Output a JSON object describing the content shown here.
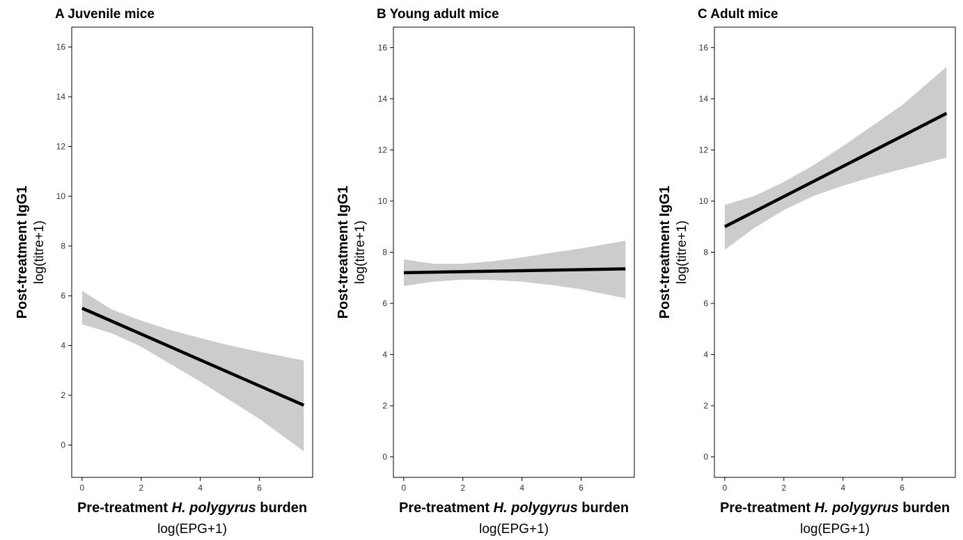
{
  "chart_data": [
    {
      "type": "line",
      "title": "A Juvenile mice",
      "ylabel_main": "Post-treatment IgG1",
      "ylabel_sub": "log(titre+1)",
      "xlabel_prefix": "Pre-treatment ",
      "xlabel_italic": "H. polygyrus",
      "xlabel_suffix": " burden",
      "xlabel_sub": "log(EPG+1)",
      "xlim": [
        -0.35,
        7.8
      ],
      "ylim": [
        -1.3,
        16.8
      ],
      "xticks": [
        0,
        2,
        4,
        6
      ],
      "yticks": [
        0,
        2,
        4,
        6,
        8,
        10,
        12,
        14,
        16
      ],
      "grid": false,
      "fit": {
        "x": [
          0,
          2,
          4,
          6,
          7.5
        ],
        "y": [
          5.5,
          4.46,
          3.42,
          2.38,
          1.6
        ]
      },
      "ci_upper": {
        "x": [
          0,
          1,
          2,
          3,
          4,
          5,
          6,
          7.5
        ],
        "y": [
          6.2,
          5.45,
          5.0,
          4.62,
          4.3,
          4.0,
          3.75,
          3.4
        ]
      },
      "ci_lower": {
        "x": [
          0,
          1,
          2,
          3,
          4,
          5,
          6,
          7.5
        ],
        "y": [
          4.85,
          4.5,
          3.95,
          3.25,
          2.55,
          1.8,
          1.05,
          -0.25
        ]
      }
    },
    {
      "type": "line",
      "title": "B Young adult mice",
      "ylabel_main": "Post-treatment IgG1",
      "ylabel_sub": "log(titre+1)",
      "xlabel_prefix": "Pre-treatment ",
      "xlabel_italic": "H. polygyrus",
      "xlabel_suffix": " burden",
      "xlabel_sub": "log(EPG+1)",
      "xlim": [
        -0.35,
        7.8
      ],
      "ylim": [
        -0.8,
        16.8
      ],
      "xticks": [
        0,
        2,
        4,
        6
      ],
      "yticks": [
        0,
        2,
        4,
        6,
        8,
        10,
        12,
        14,
        16
      ],
      "grid": false,
      "fit": {
        "x": [
          0,
          2,
          4,
          6,
          7.5
        ],
        "y": [
          7.2,
          7.24,
          7.28,
          7.32,
          7.35
        ]
      },
      "ci_upper": {
        "x": [
          0,
          1,
          2,
          3,
          4,
          5,
          6,
          7.5
        ],
        "y": [
          7.72,
          7.55,
          7.55,
          7.65,
          7.8,
          7.98,
          8.15,
          8.45
        ]
      },
      "ci_lower": {
        "x": [
          0,
          1,
          2,
          3,
          4,
          5,
          6,
          7.5
        ],
        "y": [
          6.68,
          6.85,
          6.93,
          6.92,
          6.85,
          6.72,
          6.55,
          6.2
        ]
      }
    },
    {
      "type": "line",
      "title": "C Adult mice",
      "ylabel_main": "Post-treatment IgG1",
      "ylabel_sub": "log(titre+1)",
      "xlabel_prefix": "Pre-treatment ",
      "xlabel_italic": "H. polygyrus",
      "xlabel_suffix": " burden",
      "xlabel_sub": "log(EPG+1)",
      "xlim": [
        -0.35,
        7.8
      ],
      "ylim": [
        -0.8,
        16.8
      ],
      "xticks": [
        0,
        2,
        4,
        6
      ],
      "yticks": [
        0,
        2,
        4,
        6,
        8,
        10,
        12,
        14,
        16
      ],
      "grid": false,
      "fit": {
        "x": [
          0,
          2,
          4,
          6,
          7.5
        ],
        "y": [
          9.0,
          10.18,
          11.36,
          12.54,
          13.43
        ]
      },
      "ci_upper": {
        "x": [
          0,
          1,
          2,
          3,
          4,
          5,
          6,
          7.5
        ],
        "y": [
          9.85,
          10.2,
          10.75,
          11.4,
          12.15,
          12.95,
          13.75,
          15.25
        ]
      },
      "ci_lower": {
        "x": [
          0,
          1,
          2,
          3,
          4,
          5,
          6,
          7.5
        ],
        "y": [
          8.1,
          8.95,
          9.65,
          10.2,
          10.6,
          10.95,
          11.25,
          11.7
        ]
      }
    }
  ],
  "colors": {
    "ribbon": "#cccccc",
    "line": "#000000",
    "axis": "#000000",
    "tick_text": "#333333"
  }
}
